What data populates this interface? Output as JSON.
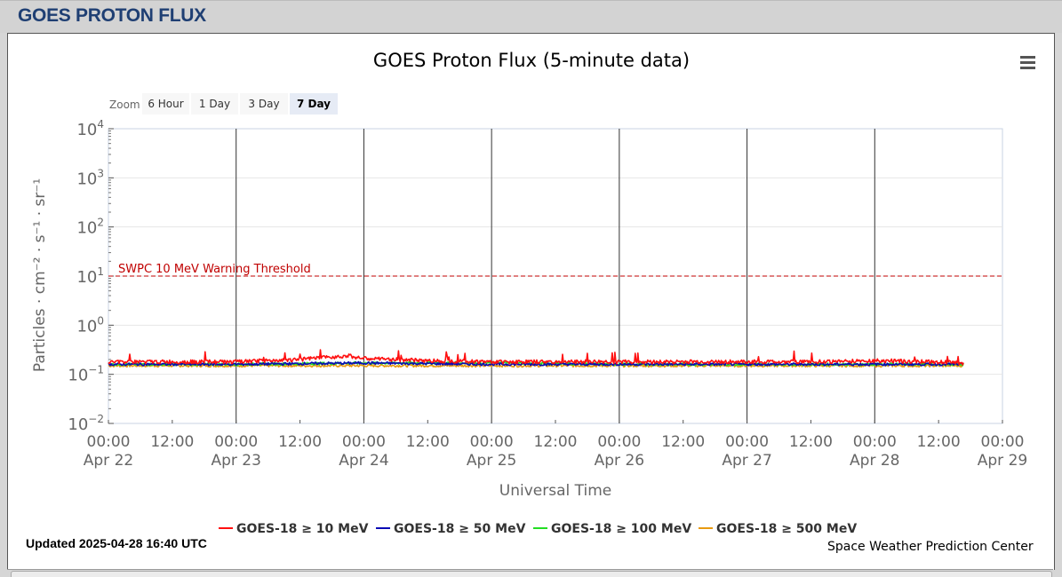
{
  "header": {
    "title": "GOES PROTON FLUX"
  },
  "zoom": {
    "label": "Zoom",
    "buttons": [
      {
        "label": "6 Hour",
        "selected": false
      },
      {
        "label": "1 Day",
        "selected": false
      },
      {
        "label": "3 Day",
        "selected": false
      },
      {
        "label": "7 Day",
        "selected": true
      }
    ]
  },
  "menu": {
    "icon": "hamburger-menu-icon"
  },
  "footer": {
    "updated": "Updated 2025-04-28 16:40 UTC",
    "credit": "Space Weather Prediction Center"
  },
  "chart_data": {
    "type": "line",
    "title": "GOES Proton Flux (5-minute data)",
    "xlabel": "Universal Time",
    "ylabel": "Particles · cm⁻² · s⁻¹ · sr⁻¹",
    "y_scale": "log",
    "ylim": [
      0.01,
      10000
    ],
    "y_ticks": [
      {
        "base": "10",
        "exp": "4"
      },
      {
        "base": "10",
        "exp": "3"
      },
      {
        "base": "10",
        "exp": "2"
      },
      {
        "base": "10",
        "exp": "1"
      },
      {
        "base": "10",
        "exp": "0"
      },
      {
        "base": "10",
        "exp": "−1"
      },
      {
        "base": "10",
        "exp": "−2"
      }
    ],
    "xlim": [
      "2025-04-22 00:00",
      "2025-04-29 00:00"
    ],
    "x_ticks": [
      {
        "time": "00:00",
        "date": "Apr 22"
      },
      {
        "time": "12:00",
        "date": ""
      },
      {
        "time": "00:00",
        "date": "Apr 23"
      },
      {
        "time": "12:00",
        "date": ""
      },
      {
        "time": "00:00",
        "date": "Apr 24"
      },
      {
        "time": "12:00",
        "date": ""
      },
      {
        "time": "00:00",
        "date": "Apr 25"
      },
      {
        "time": "12:00",
        "date": ""
      },
      {
        "time": "00:00",
        "date": "Apr 26"
      },
      {
        "time": "12:00",
        "date": ""
      },
      {
        "time": "00:00",
        "date": "Apr 27"
      },
      {
        "time": "12:00",
        "date": ""
      },
      {
        "time": "00:00",
        "date": "Apr 28"
      },
      {
        "time": "12:00",
        "date": ""
      },
      {
        "time": "00:00",
        "date": "Apr 29"
      }
    ],
    "threshold": {
      "label": "SWPC 10 MeV Warning Threshold",
      "value": 10,
      "color": "#c00000"
    },
    "grid": true,
    "legend_position": "bottom-center",
    "series": [
      {
        "name": "GOES-18 ≥ 10 MeV",
        "color": "#ff1010",
        "x": [
          "2025-04-22 00:00",
          "2025-04-22 12:00",
          "2025-04-23 00:00",
          "2025-04-23 12:00",
          "2025-04-23 21:00",
          "2025-04-24 00:00",
          "2025-04-24 12:00",
          "2025-04-25 00:00",
          "2025-04-25 12:00",
          "2025-04-26 00:00",
          "2025-04-26 12:00",
          "2025-04-27 00:00",
          "2025-04-27 12:00",
          "2025-04-28 00:00",
          "2025-04-28 12:00",
          "2025-04-28 16:40"
        ],
        "values": [
          0.18,
          0.18,
          0.18,
          0.2,
          0.24,
          0.21,
          0.19,
          0.18,
          0.18,
          0.18,
          0.18,
          0.18,
          0.18,
          0.19,
          0.18,
          0.17
        ]
      },
      {
        "name": "GOES-18 ≥ 50 MeV",
        "color": "#0a0ab5",
        "x": [
          "2025-04-22 00:00",
          "2025-04-23 00:00",
          "2025-04-24 00:00",
          "2025-04-25 00:00",
          "2025-04-26 00:00",
          "2025-04-27 00:00",
          "2025-04-28 00:00",
          "2025-04-28 16:40"
        ],
        "values": [
          0.16,
          0.16,
          0.17,
          0.16,
          0.16,
          0.16,
          0.16,
          0.16
        ]
      },
      {
        "name": "GOES-18 ≥ 100 MeV",
        "color": "#22dd22",
        "x": [
          "2025-04-22 00:00",
          "2025-04-23 00:00",
          "2025-04-24 00:00",
          "2025-04-25 00:00",
          "2025-04-26 00:00",
          "2025-04-27 00:00",
          "2025-04-28 00:00",
          "2025-04-28 16:40"
        ],
        "values": [
          0.16,
          0.16,
          0.17,
          0.17,
          0.16,
          0.16,
          0.16,
          0.16
        ]
      },
      {
        "name": "GOES-18 ≥ 500 MeV",
        "color": "#e89a10",
        "x": [
          "2025-04-22 00:00",
          "2025-04-23 00:00",
          "2025-04-24 00:00",
          "2025-04-25 00:00",
          "2025-04-26 00:00",
          "2025-04-27 00:00",
          "2025-04-28 00:00",
          "2025-04-28 16:40"
        ],
        "values": [
          0.15,
          0.15,
          0.15,
          0.15,
          0.15,
          0.15,
          0.15,
          0.15
        ]
      }
    ]
  }
}
